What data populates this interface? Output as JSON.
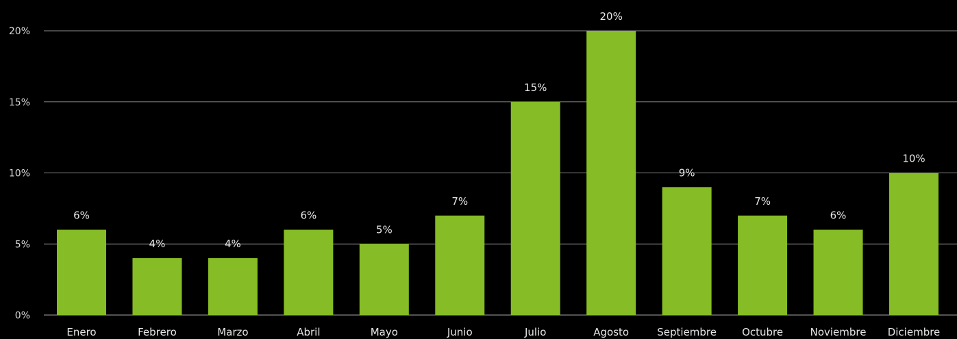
{
  "chart_data": {
    "type": "bar",
    "categories": [
      "Enero",
      "Febrero",
      "Marzo",
      "Abril",
      "Mayo",
      "Junio",
      "Julio",
      "Agosto",
      "Septiembre",
      "Octubre",
      "Noviembre",
      "Diciembre"
    ],
    "values": [
      6,
      4,
      4,
      6,
      5,
      7,
      15,
      20,
      9,
      7,
      6,
      10
    ],
    "data_labels": [
      "6%",
      "4%",
      "4%",
      "6%",
      "5%",
      "7%",
      "15%",
      "20%",
      "9%",
      "7%",
      "6%",
      "10%"
    ],
    "y_ticks": [
      0,
      5,
      10,
      15,
      20
    ],
    "y_tick_labels": [
      "0%",
      "5%",
      "10%",
      "15%",
      "20%"
    ],
    "ylim": [
      0,
      20
    ],
    "grid": true,
    "legend": "none",
    "title": "",
    "xlabel": "",
    "ylabel": "",
    "colors": {
      "bar": "#86bc25",
      "background": "#000000",
      "grid": "#8c8c8c",
      "text": "#e6e6e6"
    }
  }
}
